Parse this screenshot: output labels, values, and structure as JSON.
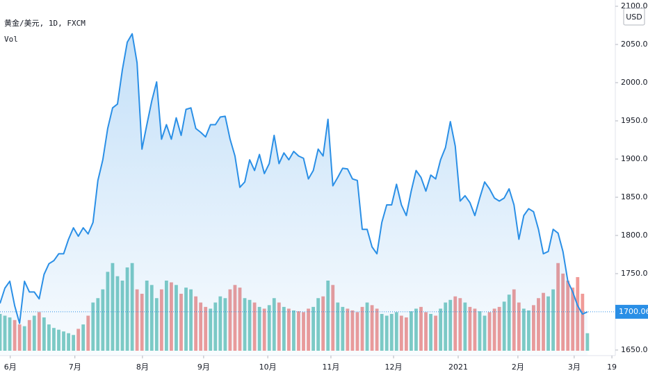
{
  "chart_data": {
    "type": "area",
    "title": "黄金/美元, 1D, FXCM",
    "volume_label": "Vol",
    "currency": "USD",
    "color": "#2a8fe6",
    "values": [
      1711,
      1731,
      1740,
      1708,
      1685,
      1740,
      1726,
      1726,
      1717,
      1749,
      1763,
      1767,
      1776,
      1776,
      1795,
      1810,
      1799,
      1810,
      1802,
      1817,
      1872,
      1899,
      1940,
      1967,
      1972,
      2017,
      2053,
      2064,
      2026,
      1913,
      1945,
      1976,
      2001,
      1926,
      1945,
      1926,
      1954,
      1931,
      1965,
      1967,
      1940,
      1935,
      1929,
      1945,
      1945,
      1955,
      1956,
      1926,
      1904,
      1863,
      1870,
      1899,
      1885,
      1906,
      1881,
      1894,
      1931,
      1894,
      1908,
      1899,
      1910,
      1904,
      1901,
      1874,
      1885,
      1913,
      1904,
      1952,
      1865,
      1876,
      1888,
      1887,
      1874,
      1872,
      1808,
      1808,
      1785,
      1776,
      1817,
      1840,
      1840,
      1867,
      1840,
      1826,
      1858,
      1885,
      1876,
      1858,
      1879,
      1874,
      1899,
      1915,
      1949,
      1917,
      1845,
      1852,
      1843,
      1826,
      1849,
      1870,
      1861,
      1849,
      1845,
      1849,
      1861,
      1840,
      1795,
      1826,
      1835,
      1831,
      1808,
      1776,
      1779,
      1808,
      1803,
      1779,
      1740,
      1726,
      1708,
      1697,
      1700
    ],
    "volume": {
      "up_color": "#7fccc4",
      "down_color": "#f09b98",
      "ylim": [
        0,
        400
      ],
      "values": [
        42,
        40,
        38,
        35,
        30,
        28,
        35,
        40,
        44,
        38,
        30,
        26,
        24,
        22,
        20,
        18,
        25,
        30,
        40,
        55,
        60,
        70,
        90,
        100,
        85,
        80,
        95,
        100,
        70,
        65,
        80,
        75,
        60,
        70,
        80,
        78,
        75,
        65,
        72,
        70,
        62,
        55,
        50,
        48,
        55,
        62,
        60,
        70,
        75,
        72,
        60,
        58,
        55,
        50,
        48,
        52,
        60,
        55,
        50,
        48,
        46,
        45,
        44,
        48,
        50,
        60,
        62,
        80,
        75,
        55,
        50,
        48,
        46,
        44,
        50,
        55,
        52,
        48,
        42,
        40,
        42,
        44,
        40,
        38,
        45,
        48,
        50,
        44,
        42,
        40,
        48,
        55,
        58,
        62,
        60,
        55,
        50,
        48,
        45,
        40,
        44,
        48,
        50,
        56,
        64,
        70,
        55,
        48,
        46,
        52,
        60,
        66,
        62,
        70,
        100,
        88,
        80,
        72,
        84,
        65,
        20
      ]
    },
    "xlim": [
      0,
      125.7
    ],
    "xticks": [
      {
        "value": 2.1,
        "label": "6月"
      },
      {
        "value": 15.3,
        "label": "7月"
      },
      {
        "value": 29.1,
        "label": "8月"
      },
      {
        "value": 41.6,
        "label": "9月"
      },
      {
        "value": 54.7,
        "label": "10月"
      },
      {
        "value": 67.6,
        "label": "11月"
      },
      {
        "value": 80.4,
        "label": "12月"
      },
      {
        "value": 93.6,
        "label": "2021"
      },
      {
        "value": 105.8,
        "label": "2月"
      },
      {
        "value": 117.3,
        "label": "3月"
      },
      {
        "value": 125,
        "label": "19"
      }
    ],
    "ylim": [
      1642.7,
      2108.2
    ],
    "yticks": [
      {
        "value": 1650,
        "label": "1650.00"
      },
      {
        "value": 1700,
        "label": "1700.00"
      },
      {
        "value": 1750,
        "label": "1750.00"
      },
      {
        "value": 1800,
        "label": "1800.00"
      },
      {
        "value": 1850,
        "label": "1850.00"
      },
      {
        "value": 1900,
        "label": "1900.00"
      },
      {
        "value": 1950,
        "label": "1950.00"
      },
      {
        "value": 2000,
        "label": "2000.00"
      },
      {
        "value": 2050,
        "label": "2050.00"
      },
      {
        "value": 2100,
        "label": "2100.00"
      }
    ],
    "last_price": 1700.06
  }
}
